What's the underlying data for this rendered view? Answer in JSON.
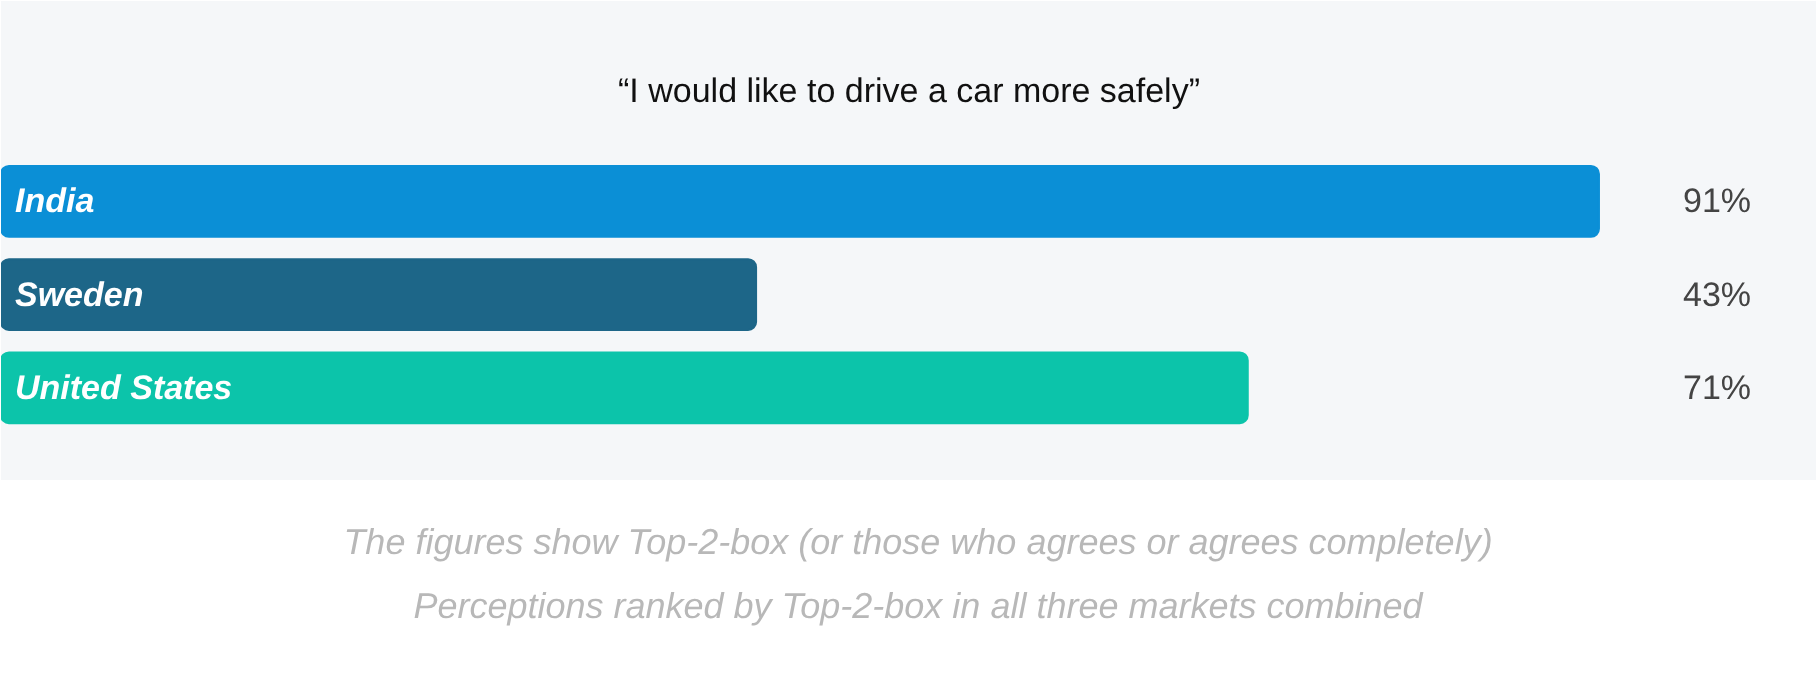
{
  "chart_data": {
    "type": "bar",
    "orientation": "horizontal",
    "title": "“I would like to drive a car more safely”",
    "categories": [
      "India",
      "Sweden",
      "United States"
    ],
    "values": [
      91,
      43,
      71
    ],
    "colors": [
      "#0b8fd6",
      "#1d6688",
      "#0cc4aa"
    ],
    "value_labels": [
      "91%",
      "43%",
      "71%"
    ],
    "xlim": [
      0,
      100
    ],
    "tick_labels": false,
    "grid": false,
    "annotations": [
      "The figures show Top-2-box (or those who agrees or agrees completely)",
      "Perceptions ranked by Top-2-box in all three markets combined"
    ]
  }
}
